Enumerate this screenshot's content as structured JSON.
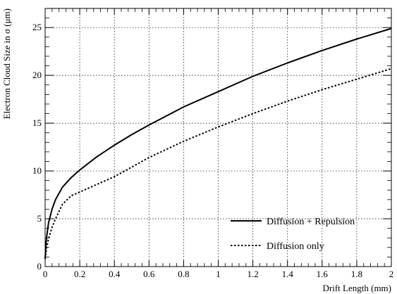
{
  "chart_data": {
    "type": "line",
    "xlabel": "Drift Length (mm)",
    "ylabel": "Electron Cloud Size in σ (μm)",
    "xlim": [
      0,
      2
    ],
    "ylim": [
      0,
      27
    ],
    "grid": true,
    "legend_position": "bottom-right",
    "x_ticks": [
      {
        "value": 0,
        "label": "0"
      },
      {
        "value": 0.2,
        "label": "0.2"
      },
      {
        "value": 0.4,
        "label": "0.4"
      },
      {
        "value": 0.6,
        "label": "0.6"
      },
      {
        "value": 0.8,
        "label": "0.8"
      },
      {
        "value": 1.0,
        "label": "1"
      },
      {
        "value": 1.2,
        "label": "1.2"
      },
      {
        "value": 1.4,
        "label": "1.4"
      },
      {
        "value": 1.6,
        "label": "1.6"
      },
      {
        "value": 1.8,
        "label": "1.8"
      },
      {
        "value": 2.0,
        "label": "2"
      }
    ],
    "y_ticks": [
      {
        "value": 0,
        "label": "0"
      },
      {
        "value": 5,
        "label": "5"
      },
      {
        "value": 10,
        "label": "10"
      },
      {
        "value": 15,
        "label": "15"
      },
      {
        "value": 20,
        "label": "20"
      },
      {
        "value": 25,
        "label": "25"
      }
    ],
    "series": [
      {
        "name": "Diffusion + Repulsion",
        "style": "solid",
        "color": "#000000",
        "x": [
          0,
          0.005,
          0.01,
          0.02,
          0.04,
          0.06,
          0.1,
          0.15,
          0.2,
          0.3,
          0.4,
          0.5,
          0.6,
          0.8,
          1.0,
          1.2,
          1.4,
          1.6,
          1.8,
          2.0
        ],
        "y": [
          0.8,
          2.4,
          3.3,
          4.6,
          6.0,
          7.0,
          8.3,
          9.3,
          10.1,
          11.5,
          12.7,
          13.8,
          14.8,
          16.7,
          18.3,
          19.9,
          21.3,
          22.6,
          23.8,
          24.9
        ]
      },
      {
        "name": "Diffusion only",
        "style": "dotted",
        "color": "#000000",
        "x": [
          0,
          0.005,
          0.01,
          0.02,
          0.04,
          0.06,
          0.1,
          0.15,
          0.2,
          0.3,
          0.4,
          0.5,
          0.6,
          0.8,
          1.0,
          1.2,
          1.4,
          1.6,
          1.8,
          2.0
        ],
        "y": [
          0.8,
          1.5,
          2.1,
          2.9,
          4.1,
          5.0,
          6.5,
          7.4,
          7.8,
          8.6,
          9.4,
          10.4,
          11.4,
          13.1,
          14.6,
          16.0,
          17.3,
          18.5,
          19.6,
          20.7
        ]
      }
    ]
  }
}
